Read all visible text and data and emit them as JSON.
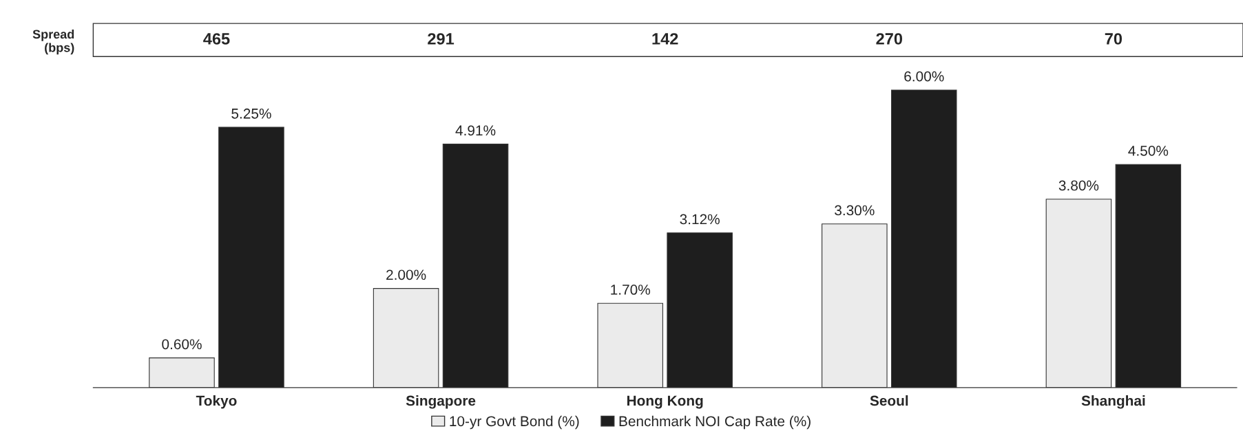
{
  "chart_data": {
    "type": "bar",
    "categories": [
      "Tokyo",
      "Singapore",
      "Hong Kong",
      "Seoul",
      "Shanghai"
    ],
    "series": [
      {
        "name": "10-yr Govt Bond (%)",
        "color": "#ebebeb",
        "values": [
          0.6,
          2.0,
          1.7,
          3.3,
          3.8
        ],
        "value_labels": [
          "0.60%",
          "2.00%",
          "1.70%",
          "3.30%",
          "3.80%"
        ]
      },
      {
        "name": "Benchmark NOI Cap Rate (%)",
        "color": "#1e1e1e",
        "values": [
          5.25,
          4.91,
          3.12,
          6.0,
          4.5
        ],
        "value_labels": [
          "5.25%",
          "4.91%",
          "3.12%",
          "6.00%",
          "4.50%"
        ]
      }
    ],
    "tick_labels": "x",
    "grid": false,
    "legend": "bottom",
    "annotations": [
      "Spread\n(bps)",
      "465",
      "291",
      "142",
      "270",
      "70"
    ]
  }
}
